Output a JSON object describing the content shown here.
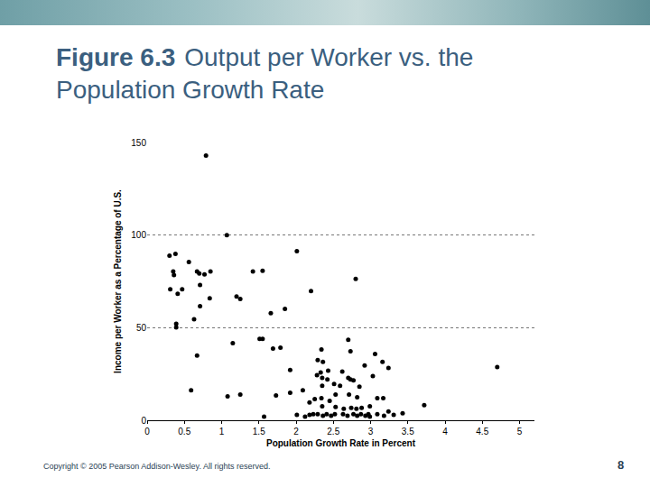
{
  "chart_data": {
    "type": "scatter",
    "figure": "Figure 6.3",
    "title": "Output per Worker vs. the Population Growth Rate",
    "x_label": "Population Growth Rate in Percent",
    "y_label": "Income per Worker as a Percentage of U.S.",
    "x": [
      0.79,
      1.07,
      0.3,
      0.38,
      0.56,
      0.35,
      0.36,
      0.67,
      0.7,
      0.77,
      0.85,
      1.42,
      1.55,
      2.01,
      2.8,
      0.31,
      0.41,
      0.47,
      0.71,
      0.84,
      1.2,
      1.25,
      2.2,
      0.71,
      1.66,
      1.85,
      0.63,
      0.39,
      0.39,
      1.15,
      1.51,
      1.55,
      1.69,
      1.79,
      0.67,
      2.34,
      2.7,
      2.73,
      3.06,
      3.16,
      3.24,
      4.7,
      1.92,
      2.29,
      2.36,
      2.92,
      2.28,
      2.33,
      2.35,
      2.43,
      2.42,
      2.51,
      2.62,
      2.7,
      2.73,
      2.77,
      3.03,
      2.35,
      2.59,
      2.85,
      0.59,
      1.08,
      1.25,
      1.73,
      1.92,
      2.09,
      2.18,
      2.25,
      2.34,
      2.45,
      2.53,
      2.71,
      2.82,
      3.09,
      3.17,
      2.35,
      2.53,
      2.64,
      2.74,
      2.81,
      2.88,
      2.99,
      1.57,
      2.01,
      2.12,
      2.18,
      2.23,
      2.29,
      2.36,
      2.41,
      2.47,
      2.52,
      2.63,
      2.69,
      2.77,
      2.82,
      2.87,
      2.93,
      2.99,
      3.09,
      3.18,
      3.31,
      3.43,
      3.72,
      2.97,
      3.24
    ],
    "values": [
      142.9,
      99.9,
      88.9,
      89.8,
      85.5,
      80.3,
      78.4,
      80.3,
      79.3,
      78.8,
      80.3,
      80.3,
      80.7,
      91.3,
      76.4,
      70.7,
      68.3,
      70.7,
      73.1,
      65.9,
      66.9,
      65.5,
      69.8,
      61.6,
      57.8,
      60.2,
      54.5,
      52.1,
      50.2,
      41.6,
      44.0,
      44.0,
      38.7,
      39.2,
      34.9,
      38.2,
      43.5,
      37.3,
      35.8,
      31.5,
      28.2,
      28.7,
      27.2,
      32.5,
      31.5,
      29.6,
      24.4,
      25.8,
      22.9,
      26.8,
      22.0,
      19.6,
      26.3,
      22.9,
      22.0,
      21.5,
      23.9,
      18.6,
      18.6,
      18.2,
      16.2,
      12.9,
      13.9,
      13.4,
      14.8,
      16.2,
      9.6,
      11.5,
      11.9,
      10.5,
      13.9,
      13.9,
      12.4,
      11.9,
      11.9,
      7.6,
      7.2,
      6.2,
      6.7,
      6.2,
      6.7,
      7.6,
      1.9,
      2.9,
      1.9,
      2.9,
      3.3,
      3.3,
      2.4,
      3.3,
      2.4,
      3.3,
      3.3,
      2.4,
      3.3,
      2.4,
      3.3,
      2.4,
      1.9,
      3.3,
      2.4,
      2.9,
      3.8,
      8.1,
      3.3,
      4.8
    ],
    "color": "#000000",
    "marker": "circle",
    "xlim": [
      0,
      5.2
    ],
    "xticks": [
      0,
      0.5,
      1,
      1.5,
      2,
      2.5,
      3,
      3.5,
      4,
      4.5,
      5
    ],
    "ylim": [
      0,
      150
    ],
    "yticks": [
      0,
      50,
      100,
      150
    ],
    "grid": true
  },
  "footer": {
    "copyright": "Copyright © 2005 Pearson Addison-Wesley. All rights reserved.",
    "page": 8
  }
}
